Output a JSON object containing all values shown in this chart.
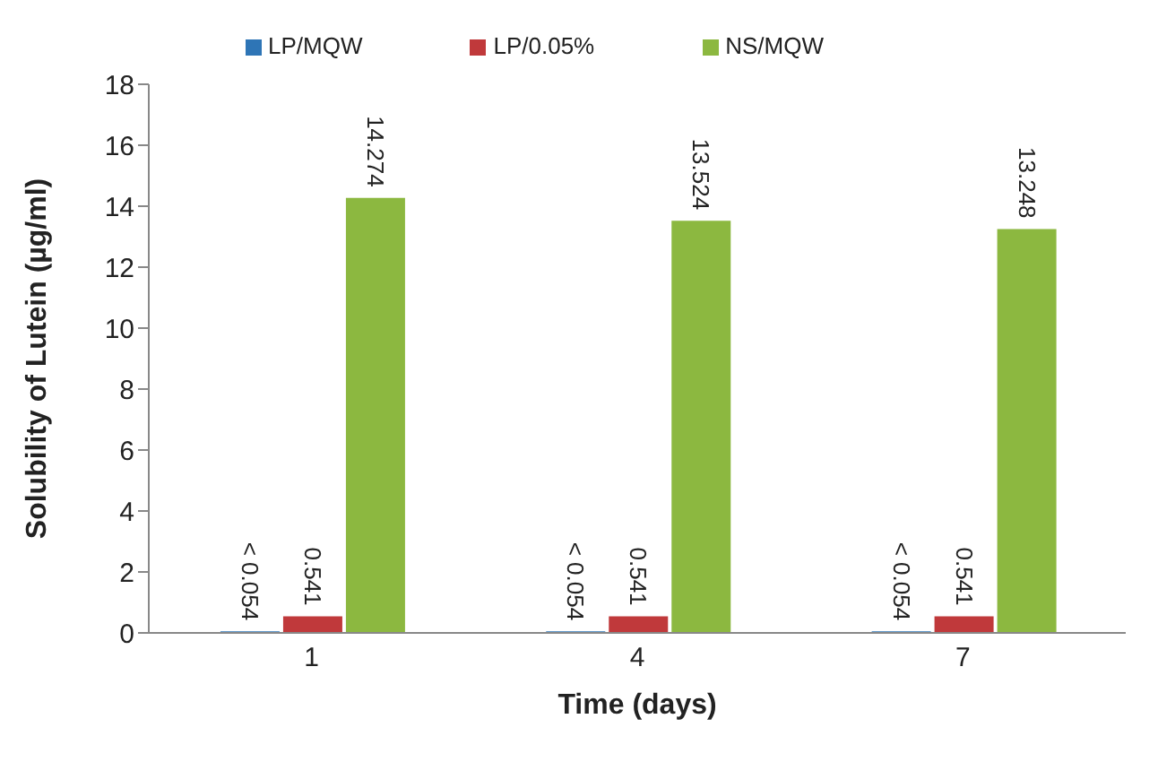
{
  "chart_data": {
    "type": "bar",
    "xlabel": "Time (days)",
    "ylabel": "Solubility of Lutein (µg/ml)",
    "categories": [
      "1",
      "4",
      "7"
    ],
    "series": [
      {
        "name": "LP/MQW",
        "color": "#2e75b6",
        "values": [
          0.054,
          0.054,
          0.054
        ],
        "value_labels": [
          "< 0.054",
          "< 0.054",
          "< 0.054"
        ]
      },
      {
        "name": "LP/0.05%",
        "color": "#c0393b",
        "values": [
          0.541,
          0.541,
          0.541
        ],
        "value_labels": [
          "0.541",
          "0.541",
          "0.541"
        ]
      },
      {
        "name": "NS/MQW",
        "color": "#8cb840",
        "values": [
          14.274,
          13.524,
          13.248
        ],
        "value_labels": [
          "14.274",
          "13.524",
          "13.248"
        ]
      }
    ],
    "ylim": [
      0,
      18
    ],
    "yticks": [
      0,
      2,
      4,
      6,
      8,
      10,
      12,
      14,
      16,
      18
    ],
    "legend": "top",
    "grid": false
  }
}
